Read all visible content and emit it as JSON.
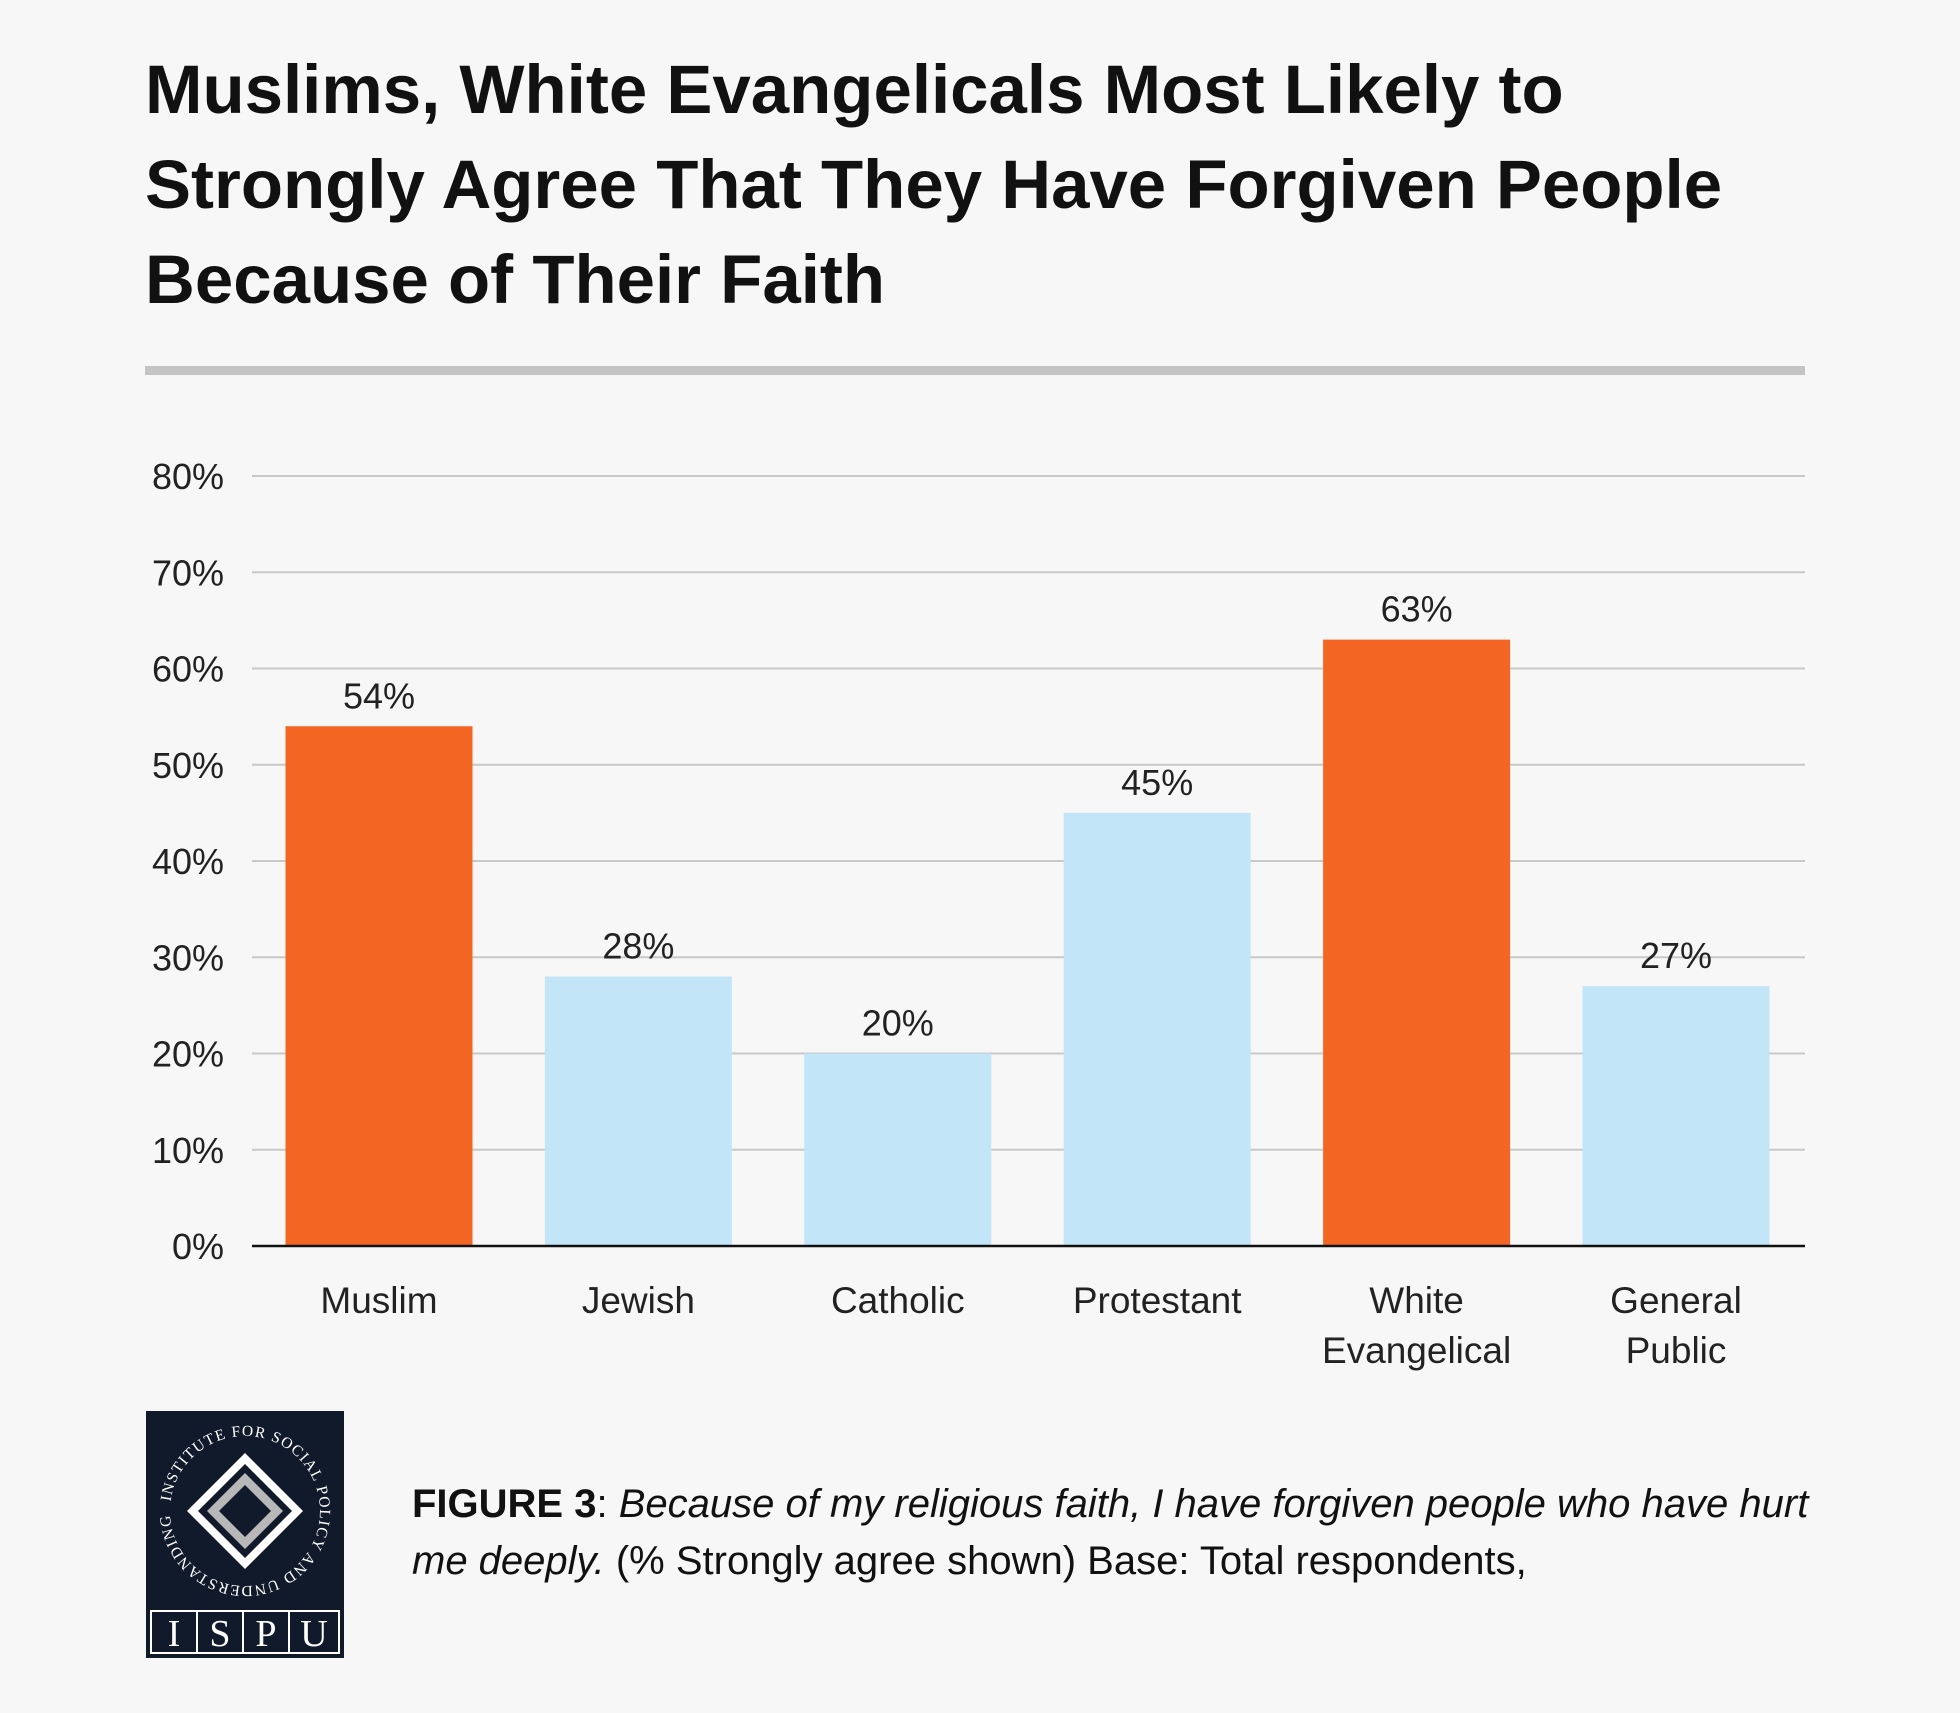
{
  "title_lines": [
    "Muslims, White Evangelicals Most Likely to",
    "Strongly Agree That They Have Forgiven People",
    "Because of Their Faith"
  ],
  "colors": {
    "highlight": "#f26522",
    "normal": "#c3e5f8",
    "grid": "#c8c8c8",
    "axis": "#111111",
    "logo_bg": "#111a2a"
  },
  "chart_data": {
    "type": "bar",
    "title": "Muslims, White Evangelicals Most Likely to Strongly Agree That They Have Forgiven People Because of Their Faith",
    "categories": [
      [
        "Muslim"
      ],
      [
        "Jewish"
      ],
      [
        "Catholic"
      ],
      [
        "Protestant"
      ],
      [
        "White",
        "Evangelical"
      ],
      [
        "General",
        "Public"
      ]
    ],
    "values": [
      54,
      28,
      20,
      45,
      63,
      27
    ],
    "value_labels": [
      "54%",
      "28%",
      "20%",
      "45%",
      "63%",
      "27%"
    ],
    "highlighted": [
      true,
      false,
      false,
      false,
      true,
      false
    ],
    "ylim": [
      0,
      80
    ],
    "yticks": [
      0,
      10,
      20,
      30,
      40,
      50,
      60,
      70,
      80
    ],
    "ytick_labels": [
      "0%",
      "10%",
      "20%",
      "30%",
      "40%",
      "50%",
      "60%",
      "70%",
      "80%"
    ],
    "grid": true,
    "legend": "none"
  },
  "logo": {
    "arc_text": "INSTITUTE FOR SOCIAL POLICY AND UNDERSTANDING",
    "letters": [
      "I",
      "S",
      "P",
      "U"
    ]
  },
  "caption": {
    "figure": "FIGURE 3",
    "question": "Because of my religious faith, I have forgiven people who have hurt me deeply.",
    "note": "(% Strongly agree shown) Base: Total respondents,"
  }
}
